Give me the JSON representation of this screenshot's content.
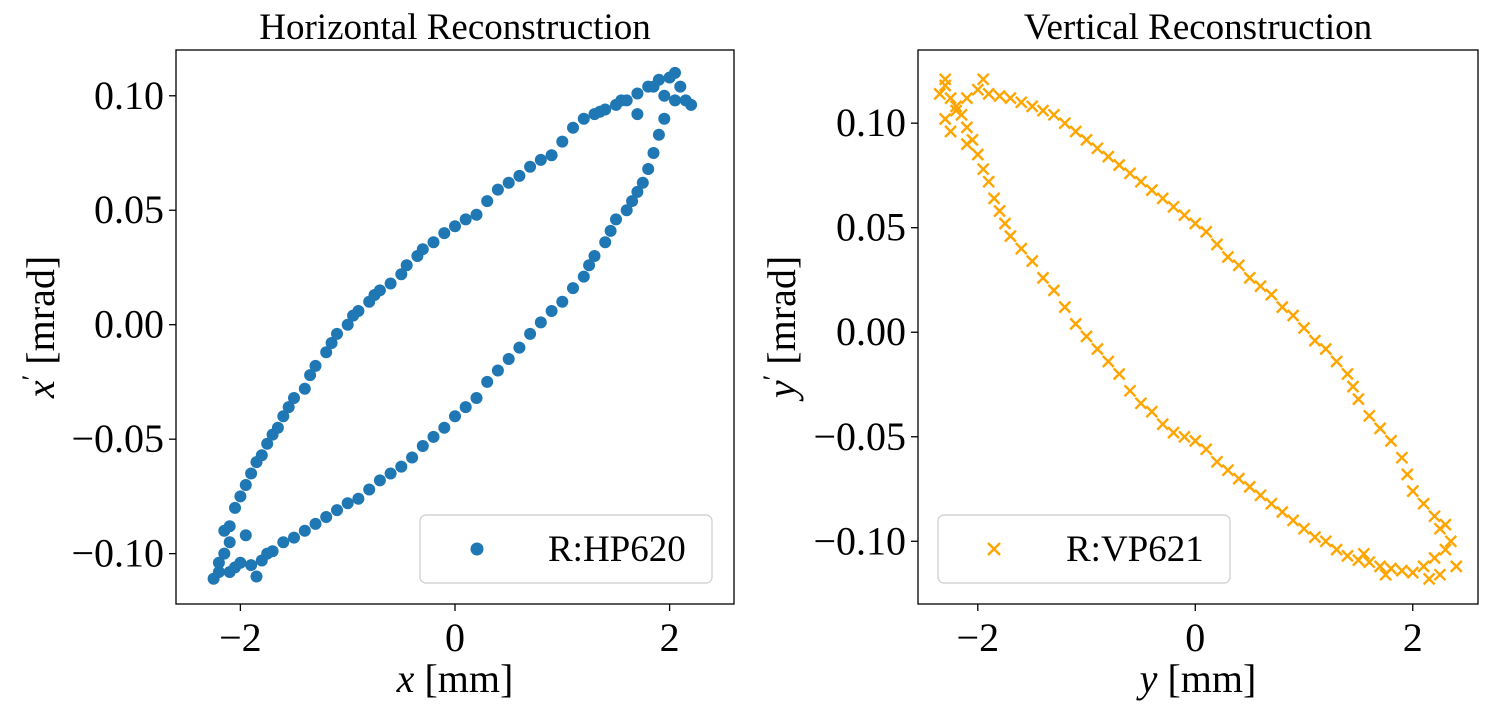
{
  "chart_data": [
    {
      "type": "scatter",
      "title": "Horizontal Reconstruction",
      "xlabel": "x [mm]",
      "ylabel": "x′ [mrad]",
      "xlabel_var": "x",
      "xlabel_unit": " [mm]",
      "ylabel_var": "x",
      "ylabel_prime": "′",
      "ylabel_unit": " [mrad]",
      "xlim": [
        -2.6,
        2.6
      ],
      "ylim": [
        -0.122,
        0.12
      ],
      "xticks": [
        -2,
        0,
        2
      ],
      "xtick_labels": [
        "−2",
        "0",
        "2"
      ],
      "yticks": [
        -0.1,
        -0.05,
        0.0,
        0.05,
        0.1
      ],
      "ytick_labels": [
        "−0.10",
        "−0.05",
        "0.00",
        "0.05",
        "0.10"
      ],
      "grid": false,
      "legend_position": "lower-right",
      "series": [
        {
          "name": "R:HP620",
          "marker": "circle",
          "color": "#1f77b4",
          "points": [
            [
              -2.2,
              -0.108
            ],
            [
              -2.15,
              -0.1
            ],
            [
              -2.1,
              -0.095
            ],
            [
              -2.1,
              -0.088
            ],
            [
              -2.05,
              -0.08
            ],
            [
              -2.0,
              -0.075
            ],
            [
              -1.95,
              -0.07
            ],
            [
              -1.9,
              -0.065
            ],
            [
              -1.85,
              -0.06
            ],
            [
              -1.8,
              -0.057
            ],
            [
              -1.75,
              -0.052
            ],
            [
              -1.7,
              -0.048
            ],
            [
              -1.65,
              -0.045
            ],
            [
              -1.6,
              -0.04
            ],
            [
              -1.55,
              -0.036
            ],
            [
              -1.5,
              -0.032
            ],
            [
              -1.4,
              -0.028
            ],
            [
              -1.35,
              -0.022
            ],
            [
              -1.3,
              -0.018
            ],
            [
              -1.2,
              -0.012
            ],
            [
              -1.15,
              -0.008
            ],
            [
              -1.1,
              -0.004
            ],
            [
              -1.0,
              0.0
            ],
            [
              -0.95,
              0.004
            ],
            [
              -0.9,
              0.006
            ],
            [
              -0.8,
              0.01
            ],
            [
              -0.75,
              0.013
            ],
            [
              -0.7,
              0.015
            ],
            [
              -0.6,
              0.018
            ],
            [
              -0.5,
              0.022
            ],
            [
              -0.45,
              0.026
            ],
            [
              -0.35,
              0.03
            ],
            [
              -0.3,
              0.033
            ],
            [
              -0.2,
              0.036
            ],
            [
              -0.1,
              0.04
            ],
            [
              0.0,
              0.043
            ],
            [
              0.1,
              0.046
            ],
            [
              0.2,
              0.048
            ],
            [
              0.3,
              0.054
            ],
            [
              0.4,
              0.059
            ],
            [
              0.5,
              0.062
            ],
            [
              0.6,
              0.065
            ],
            [
              0.7,
              0.069
            ],
            [
              0.8,
              0.072
            ],
            [
              0.9,
              0.074
            ],
            [
              1.0,
              0.08
            ],
            [
              1.1,
              0.086
            ],
            [
              1.2,
              0.09
            ],
            [
              1.3,
              0.092
            ],
            [
              1.4,
              0.094
            ],
            [
              1.5,
              0.096
            ],
            [
              1.6,
              0.098
            ],
            [
              1.7,
              0.101
            ],
            [
              1.8,
              0.104
            ],
            [
              1.9,
              0.107
            ],
            [
              2.0,
              0.108
            ],
            [
              2.1,
              0.104
            ],
            [
              2.2,
              0.096
            ],
            [
              2.15,
              0.098
            ],
            [
              2.05,
              0.098
            ],
            [
              1.95,
              0.09
            ],
            [
              1.9,
              0.083
            ],
            [
              1.85,
              0.075
            ],
            [
              1.8,
              0.068
            ],
            [
              1.75,
              0.062
            ],
            [
              1.7,
              0.058
            ],
            [
              1.65,
              0.054
            ],
            [
              1.6,
              0.05
            ],
            [
              1.5,
              0.046
            ],
            [
              1.45,
              0.041
            ],
            [
              1.4,
              0.036
            ],
            [
              1.3,
              0.03
            ],
            [
              1.25,
              0.026
            ],
            [
              1.2,
              0.021
            ],
            [
              1.1,
              0.016
            ],
            [
              1.0,
              0.01
            ],
            [
              0.9,
              0.006
            ],
            [
              0.8,
              0.001
            ],
            [
              0.7,
              -0.004
            ],
            [
              0.6,
              -0.01
            ],
            [
              0.5,
              -0.015
            ],
            [
              0.4,
              -0.02
            ],
            [
              0.3,
              -0.025
            ],
            [
              0.2,
              -0.032
            ],
            [
              0.1,
              -0.036
            ],
            [
              0.0,
              -0.04
            ],
            [
              -0.1,
              -0.045
            ],
            [
              -0.2,
              -0.049
            ],
            [
              -0.3,
              -0.053
            ],
            [
              -0.4,
              -0.058
            ],
            [
              -0.5,
              -0.062
            ],
            [
              -0.6,
              -0.065
            ],
            [
              -0.7,
              -0.068
            ],
            [
              -0.8,
              -0.072
            ],
            [
              -0.9,
              -0.076
            ],
            [
              -1.0,
              -0.078
            ],
            [
              -1.1,
              -0.081
            ],
            [
              -1.2,
              -0.084
            ],
            [
              -1.3,
              -0.087
            ],
            [
              -1.4,
              -0.09
            ],
            [
              -1.5,
              -0.093
            ],
            [
              -1.6,
              -0.095
            ],
            [
              -1.7,
              -0.099
            ],
            [
              -1.8,
              -0.103
            ],
            [
              -1.9,
              -0.105
            ],
            [
              -2.0,
              -0.104
            ],
            [
              -2.1,
              -0.108
            ],
            [
              -2.25,
              -0.111
            ],
            [
              -2.2,
              -0.104
            ],
            [
              -2.05,
              -0.106
            ],
            [
              -1.85,
              -0.11
            ],
            [
              -1.75,
              -0.1
            ],
            [
              -1.95,
              -0.092
            ],
            [
              -2.15,
              -0.09
            ],
            [
              1.85,
              0.104
            ],
            [
              1.95,
              0.1
            ],
            [
              2.05,
              0.11
            ],
            [
              1.7,
              0.092
            ],
            [
              1.55,
              0.098
            ],
            [
              1.35,
              0.093
            ]
          ]
        }
      ]
    },
    {
      "type": "scatter",
      "title": "Vertical Reconstruction",
      "xlabel": "y [mm]",
      "ylabel": "y′ [mrad]",
      "xlabel_var": "y",
      "xlabel_unit": " [mm]",
      "ylabel_var": "y",
      "ylabel_prime": "′",
      "ylabel_unit": " [mrad]",
      "xlim": [
        -2.55,
        2.6
      ],
      "ylim": [
        -0.13,
        0.135
      ],
      "xticks": [
        -2,
        0,
        2
      ],
      "xtick_labels": [
        "−2",
        "0",
        "2"
      ],
      "yticks": [
        -0.1,
        -0.05,
        0.0,
        0.05,
        0.1
      ],
      "ytick_labels": [
        "−0.10",
        "−0.05",
        "0.00",
        "0.05",
        "0.10"
      ],
      "grid": false,
      "legend_position": "lower-left",
      "series": [
        {
          "name": "R:VP621",
          "marker": "x",
          "color": "#ffa500",
          "points": [
            [
              -2.3,
              0.118
            ],
            [
              -2.25,
              0.112
            ],
            [
              -2.2,
              0.108
            ],
            [
              -2.15,
              0.104
            ],
            [
              -2.1,
              0.098
            ],
            [
              -2.05,
              0.092
            ],
            [
              -2.0,
              0.085
            ],
            [
              -1.95,
              0.078
            ],
            [
              -1.9,
              0.072
            ],
            [
              -1.85,
              0.064
            ],
            [
              -1.8,
              0.058
            ],
            [
              -1.75,
              0.052
            ],
            [
              -1.7,
              0.046
            ],
            [
              -1.6,
              0.04
            ],
            [
              -1.5,
              0.034
            ],
            [
              -1.4,
              0.026
            ],
            [
              -1.3,
              0.02
            ],
            [
              -1.2,
              0.012
            ],
            [
              -1.1,
              0.004
            ],
            [
              -1.0,
              -0.002
            ],
            [
              -0.9,
              -0.008
            ],
            [
              -0.8,
              -0.014
            ],
            [
              -0.7,
              -0.02
            ],
            [
              -0.6,
              -0.028
            ],
            [
              -0.5,
              -0.034
            ],
            [
              -0.4,
              -0.038
            ],
            [
              -0.3,
              -0.044
            ],
            [
              -0.2,
              -0.048
            ],
            [
              -0.1,
              -0.05
            ],
            [
              0.0,
              -0.052
            ],
            [
              0.1,
              -0.056
            ],
            [
              0.2,
              -0.062
            ],
            [
              0.3,
              -0.066
            ],
            [
              0.4,
              -0.07
            ],
            [
              0.5,
              -0.074
            ],
            [
              0.6,
              -0.078
            ],
            [
              0.7,
              -0.082
            ],
            [
              0.8,
              -0.086
            ],
            [
              0.9,
              -0.09
            ],
            [
              1.0,
              -0.094
            ],
            [
              1.1,
              -0.098
            ],
            [
              1.2,
              -0.1
            ],
            [
              1.3,
              -0.104
            ],
            [
              1.4,
              -0.107
            ],
            [
              1.5,
              -0.109
            ],
            [
              1.6,
              -0.11
            ],
            [
              1.7,
              -0.112
            ],
            [
              1.8,
              -0.113
            ],
            [
              1.9,
              -0.114
            ],
            [
              2.0,
              -0.115
            ],
            [
              2.1,
              -0.112
            ],
            [
              2.2,
              -0.108
            ],
            [
              2.3,
              -0.104
            ],
            [
              2.35,
              -0.1
            ],
            [
              2.25,
              -0.094
            ],
            [
              2.2,
              -0.088
            ],
            [
              2.1,
              -0.082
            ],
            [
              2.0,
              -0.076
            ],
            [
              1.95,
              -0.068
            ],
            [
              1.9,
              -0.06
            ],
            [
              1.8,
              -0.052
            ],
            [
              1.7,
              -0.046
            ],
            [
              1.6,
              -0.04
            ],
            [
              1.5,
              -0.032
            ],
            [
              1.45,
              -0.026
            ],
            [
              1.4,
              -0.02
            ],
            [
              1.3,
              -0.014
            ],
            [
              1.2,
              -0.008
            ],
            [
              1.1,
              -0.004
            ],
            [
              1.0,
              0.002
            ],
            [
              0.9,
              0.008
            ],
            [
              0.8,
              0.012
            ],
            [
              0.7,
              0.018
            ],
            [
              0.6,
              0.022
            ],
            [
              0.5,
              0.026
            ],
            [
              0.4,
              0.032
            ],
            [
              0.3,
              0.036
            ],
            [
              0.2,
              0.042
            ],
            [
              0.1,
              0.048
            ],
            [
              0.0,
              0.052
            ],
            [
              -0.1,
              0.056
            ],
            [
              -0.2,
              0.06
            ],
            [
              -0.3,
              0.064
            ],
            [
              -0.4,
              0.068
            ],
            [
              -0.5,
              0.072
            ],
            [
              -0.6,
              0.076
            ],
            [
              -0.7,
              0.08
            ],
            [
              -0.8,
              0.084
            ],
            [
              -0.9,
              0.088
            ],
            [
              -1.0,
              0.092
            ],
            [
              -1.1,
              0.096
            ],
            [
              -1.2,
              0.1
            ],
            [
              -1.3,
              0.104
            ],
            [
              -1.4,
              0.106
            ],
            [
              -1.5,
              0.108
            ],
            [
              -1.6,
              0.11
            ],
            [
              -1.7,
              0.112
            ],
            [
              -1.8,
              0.113
            ],
            [
              -1.9,
              0.114
            ],
            [
              -2.0,
              0.116
            ],
            [
              -2.1,
              0.112
            ],
            [
              -2.2,
              0.106
            ],
            [
              -2.3,
              0.102
            ],
            [
              -2.25,
              0.096
            ],
            [
              -2.35,
              0.114
            ],
            [
              -1.95,
              0.121
            ],
            [
              -2.3,
              0.121
            ],
            [
              -2.1,
              0.09
            ],
            [
              2.25,
              -0.116
            ],
            [
              2.15,
              -0.118
            ],
            [
              2.3,
              -0.092
            ],
            [
              2.4,
              -0.112
            ],
            [
              1.75,
              -0.116
            ],
            [
              1.55,
              -0.106
            ]
          ]
        }
      ]
    }
  ]
}
